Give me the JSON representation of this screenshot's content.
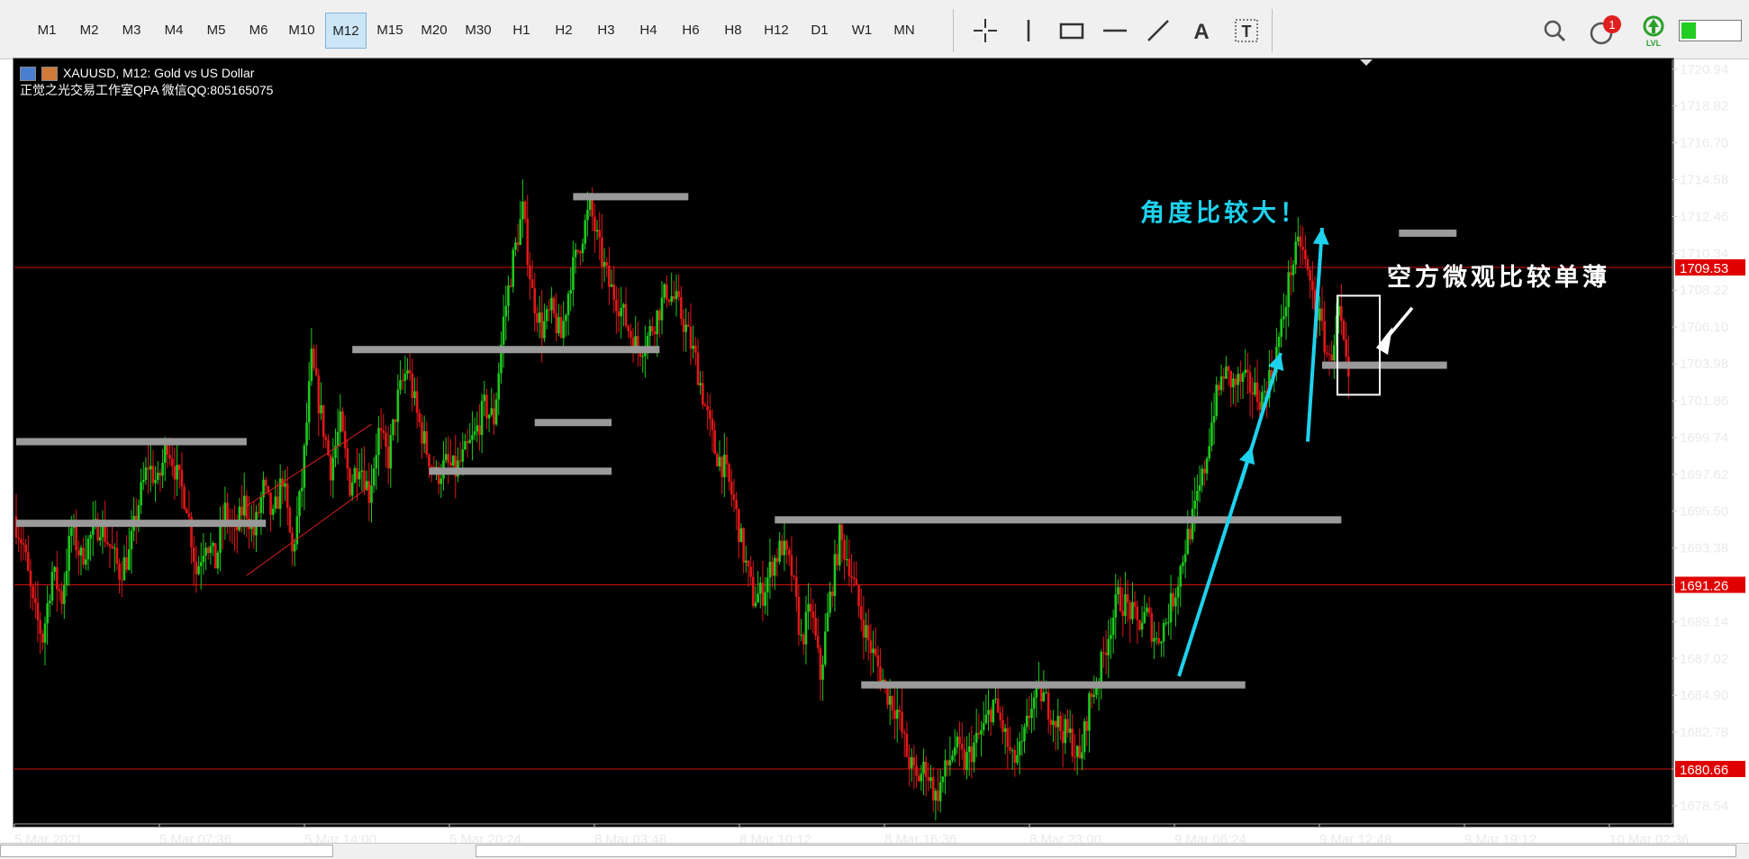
{
  "toolbar": {
    "timeframes": [
      {
        "label": "M1",
        "active": false
      },
      {
        "label": "M2",
        "active": false
      },
      {
        "label": "M3",
        "active": false
      },
      {
        "label": "M4",
        "active": false
      },
      {
        "label": "M5",
        "active": false
      },
      {
        "label": "M6",
        "active": false
      },
      {
        "label": "M10",
        "active": false
      },
      {
        "label": "M12",
        "active": true
      },
      {
        "label": "M15",
        "active": false
      },
      {
        "label": "M20",
        "active": false
      },
      {
        "label": "M30",
        "active": false
      },
      {
        "label": "H1",
        "active": false
      },
      {
        "label": "H2",
        "active": false
      },
      {
        "label": "H3",
        "active": false
      },
      {
        "label": "H4",
        "active": false
      },
      {
        "label": "H6",
        "active": false
      },
      {
        "label": "H8",
        "active": false
      },
      {
        "label": "H12",
        "active": false
      },
      {
        "label": "D1",
        "active": false
      },
      {
        "label": "W1",
        "active": false
      },
      {
        "label": "MN",
        "active": false
      }
    ],
    "tools": [
      "crosshair-icon",
      "vertical-line-icon",
      "rectangle-icon",
      "horizontal-line-icon",
      "trendline-icon",
      "text-icon",
      "text-label-icon"
    ],
    "notification_count": "1",
    "lvl_label": "LVL"
  },
  "chart_info": {
    "symbol_line": "XAUUSD, M12:  Gold vs US Dollar",
    "watermark": "正觉之光交易工作室QPA 微信QQ:805165075"
  },
  "annotations": {
    "angle_text": "角度比较大！",
    "bear_text": "空方微观比较单薄"
  },
  "chart_data": {
    "type": "candlestick",
    "symbol": "XAUUSD",
    "timeframe": "M12",
    "title": "Gold vs US Dollar",
    "y_ticks": [
      "1720.94",
      "1718.82",
      "1716.70",
      "1714.58",
      "1712.46",
      "1710.34",
      "1708.22",
      "1706.10",
      "1703.98",
      "1701.86",
      "1699.74",
      "1697.62",
      "1695.50",
      "1693.38",
      "1691.26",
      "1689.14",
      "1687.02",
      "1684.90",
      "1682.78",
      "1680.66",
      "1678.54"
    ],
    "ylim": [
      1677.5,
      1721.5
    ],
    "x_ticks": [
      "5 Mar 2021",
      "5 Mar 07:36",
      "5 Mar 14:00",
      "5 Mar 20:24",
      "8 Mar 03:48",
      "8 Mar 10:12",
      "8 Mar 16:36",
      "8 Mar 23:00",
      "9 Mar 06:24",
      "9 Mar 12:48",
      "9 Mar 19:12",
      "10 Mar 02:36"
    ],
    "price_labels": [
      {
        "value": 1709.53,
        "text": "1709.53"
      },
      {
        "value": 1691.26,
        "text": "1691.26"
      },
      {
        "value": 1680.66,
        "text": "1680.66"
      }
    ],
    "path": [
      1695.2,
      1693.5,
      1690.0,
      1688.2,
      1692.0,
      1690.5,
      1694.5,
      1692.8,
      1694.0,
      1694.8,
      1693.5,
      1692.0,
      1693.0,
      1696.0,
      1698.2,
      1697.0,
      1699.5,
      1697.5,
      1696.0,
      1692.0,
      1694.0,
      1692.5,
      1695.5,
      1694.0,
      1696.0,
      1694.2,
      1696.8,
      1695.0,
      1697.5,
      1693.0,
      1697.0,
      1704.2,
      1701.0,
      1698.0,
      1700.5,
      1697.0,
      1698.5,
      1696.5,
      1700.0,
      1698.5,
      1702.0,
      1703.8,
      1701.0,
      1699.0,
      1697.5,
      1698.2,
      1697.8,
      1698.8,
      1699.8,
      1701.5,
      1700.8,
      1706.5,
      1710.0,
      1712.8,
      1708.0,
      1706.0,
      1707.0,
      1705.5,
      1709.0,
      1711.0,
      1713.0,
      1710.5,
      1708.5,
      1707.5,
      1706.0,
      1704.8,
      1705.5,
      1706.8,
      1708.2,
      1707.5,
      1706.0,
      1704.2,
      1701.5,
      1699.0,
      1698.0,
      1696.0,
      1693.0,
      1690.5,
      1690.8,
      1692.5,
      1693.5,
      1692.0,
      1688.0,
      1690.0,
      1686.0,
      1690.5,
      1694.0,
      1692.5,
      1690.0,
      1688.0,
      1686.5,
      1685.0,
      1684.0,
      1681.5,
      1680.0,
      1680.8,
      1679.0,
      1680.5,
      1682.0,
      1681.0,
      1682.0,
      1683.0,
      1684.5,
      1683.0,
      1681.0,
      1681.8,
      1684.5,
      1685.0,
      1684.0,
      1683.0,
      1682.5,
      1681.0,
      1684.5,
      1686.0,
      1688.5,
      1690.5,
      1690.0,
      1689.0,
      1689.5,
      1688.0,
      1689.2,
      1691.0,
      1693.5,
      1695.5,
      1698.0,
      1701.5,
      1703.5,
      1702.8,
      1703.0,
      1702.5,
      1702.0,
      1703.5,
      1706.0,
      1709.5,
      1711.0,
      1708.5,
      1706.5,
      1704.0,
      1707.0,
      1702.5
    ],
    "support_resistance_lines": [
      {
        "from": 0,
        "to": 24,
        "value": 1699.5
      },
      {
        "from": 0,
        "to": 26,
        "value": 1694.8
      },
      {
        "from": 35,
        "to": 67,
        "value": 1704.8
      },
      {
        "from": 43,
        "to": 62,
        "value": 1697.8
      },
      {
        "from": 54,
        "to": 62,
        "value": 1700.6
      },
      {
        "from": 58,
        "to": 70,
        "value": 1713.6
      },
      {
        "from": 79,
        "to": 138,
        "value": 1695.0
      },
      {
        "from": 88,
        "to": 128,
        "value": 1685.5
      },
      {
        "from": 136,
        "to": 149,
        "value": 1703.9
      },
      {
        "from": 144,
        "to": 150,
        "value": 1711.5
      }
    ],
    "horizontal_levels": [
      1709.53,
      1691.26,
      1680.66
    ]
  }
}
